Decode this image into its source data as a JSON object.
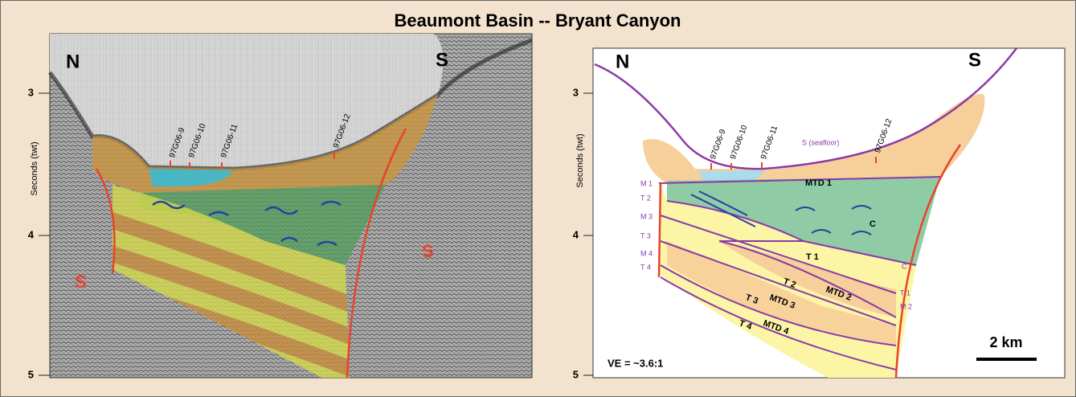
{
  "title": "Beaumont Basin -- Bryant Canyon",
  "panels": [
    {
      "axis_label": "Seconds (twt)",
      "ticks": [
        "3",
        "4",
        "5"
      ],
      "compass": [
        "N",
        "S"
      ],
      "wells": [
        "97G06-9",
        "97G06-10",
        "97G06-11",
        "97G06-12"
      ],
      "salt_labels": [
        "S",
        "S"
      ]
    },
    {
      "axis_label": "Seconds (twt)",
      "ticks": [
        "3",
        "4",
        "5"
      ],
      "compass": [
        "N",
        "S"
      ],
      "wells": [
        "97G06-9",
        "97G06-10",
        "97G06-11",
        "97G06-12"
      ],
      "seafloor_label": "S (seafloor)",
      "units": [
        "MTD 1",
        "C",
        "T 1",
        "T 2",
        "MTD 2",
        "T 3",
        "MTD 3",
        "T 4",
        "MTD 4"
      ],
      "left_labels": [
        "M 1",
        "T 2",
        "M 3",
        "T 3",
        "M 4",
        "T 4"
      ],
      "right_labels": [
        "C",
        "T 1",
        "M 2"
      ],
      "ve": "VE = ~3.6:1",
      "scale": "2 km"
    }
  ]
}
